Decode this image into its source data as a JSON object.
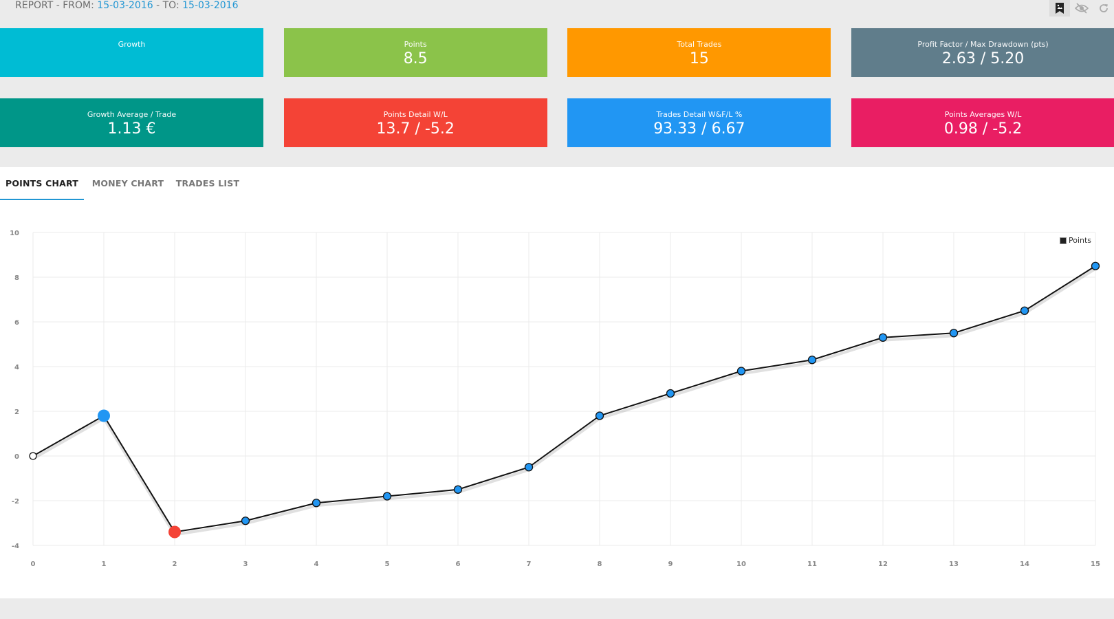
{
  "header": {
    "prefix": "REPORT - FROM: ",
    "from_date": "15-03-2016",
    "separator": " - TO: ",
    "to_date": "15-03-2016"
  },
  "toolbar": {
    "buttons": [
      {
        "icon": "image-bookmark-icon",
        "active": true
      },
      {
        "icon": "eye-slash-icon",
        "active": false
      },
      {
        "icon": "refresh-icon",
        "active": false
      }
    ]
  },
  "cards": [
    {
      "label": "Growth",
      "value": "",
      "color": "#00bcd4"
    },
    {
      "label": "Points",
      "value": "8.5",
      "color": "#8bc34a"
    },
    {
      "label": "Total Trades",
      "value": "15",
      "color": "#ff9800"
    },
    {
      "label": "Profit Factor / Max Drawdown (pts)",
      "value": "2.63 / 5.20",
      "color": "#607d8b"
    },
    {
      "label": "Growth Average / Trade",
      "value": "1.13 €",
      "color": "#009688"
    },
    {
      "label": "Points Detail W/L",
      "value": "13.7 / -5.2",
      "color": "#f44336"
    },
    {
      "label": "Trades Detail W&F/L %",
      "value": "93.33 / 6.67",
      "color": "#2196f3"
    },
    {
      "label": "Points Averages W/L",
      "value": "0.98 / -5.2",
      "color": "#e91e63"
    }
  ],
  "tabs": [
    {
      "label": "POINTS CHART",
      "active": true
    },
    {
      "label": "MONEY CHART",
      "active": false
    },
    {
      "label": "TRADES LIST",
      "active": false
    }
  ],
  "chart_data": {
    "type": "line",
    "x": [
      0,
      1,
      2,
      3,
      4,
      5,
      6,
      7,
      8,
      9,
      10,
      11,
      12,
      13,
      14,
      15
    ],
    "series": [
      {
        "name": "Points",
        "values": [
          0,
          1.8,
          -3.4,
          -2.9,
          -2.1,
          -1.8,
          -1.5,
          -0.5,
          1.8,
          2.8,
          3.8,
          4.3,
          5.3,
          5.5,
          6.5,
          8.5
        ]
      }
    ],
    "xlim": [
      0,
      15
    ],
    "ylim": [
      -4,
      10
    ],
    "yticks": [
      -4,
      -2,
      0,
      2,
      4,
      6,
      8,
      10
    ],
    "xticks": [
      0,
      1,
      2,
      3,
      4,
      5,
      6,
      7,
      8,
      9,
      10,
      11,
      12,
      13,
      14,
      15
    ],
    "grid": true,
    "legend": "top-right",
    "highlights": {
      "start": 0,
      "max_point": 1,
      "min_point": 2
    },
    "colors": {
      "line": "#111111",
      "point": "#2196f3",
      "max": "#2196f3",
      "min": "#f44336",
      "start": "#ffffff"
    }
  }
}
